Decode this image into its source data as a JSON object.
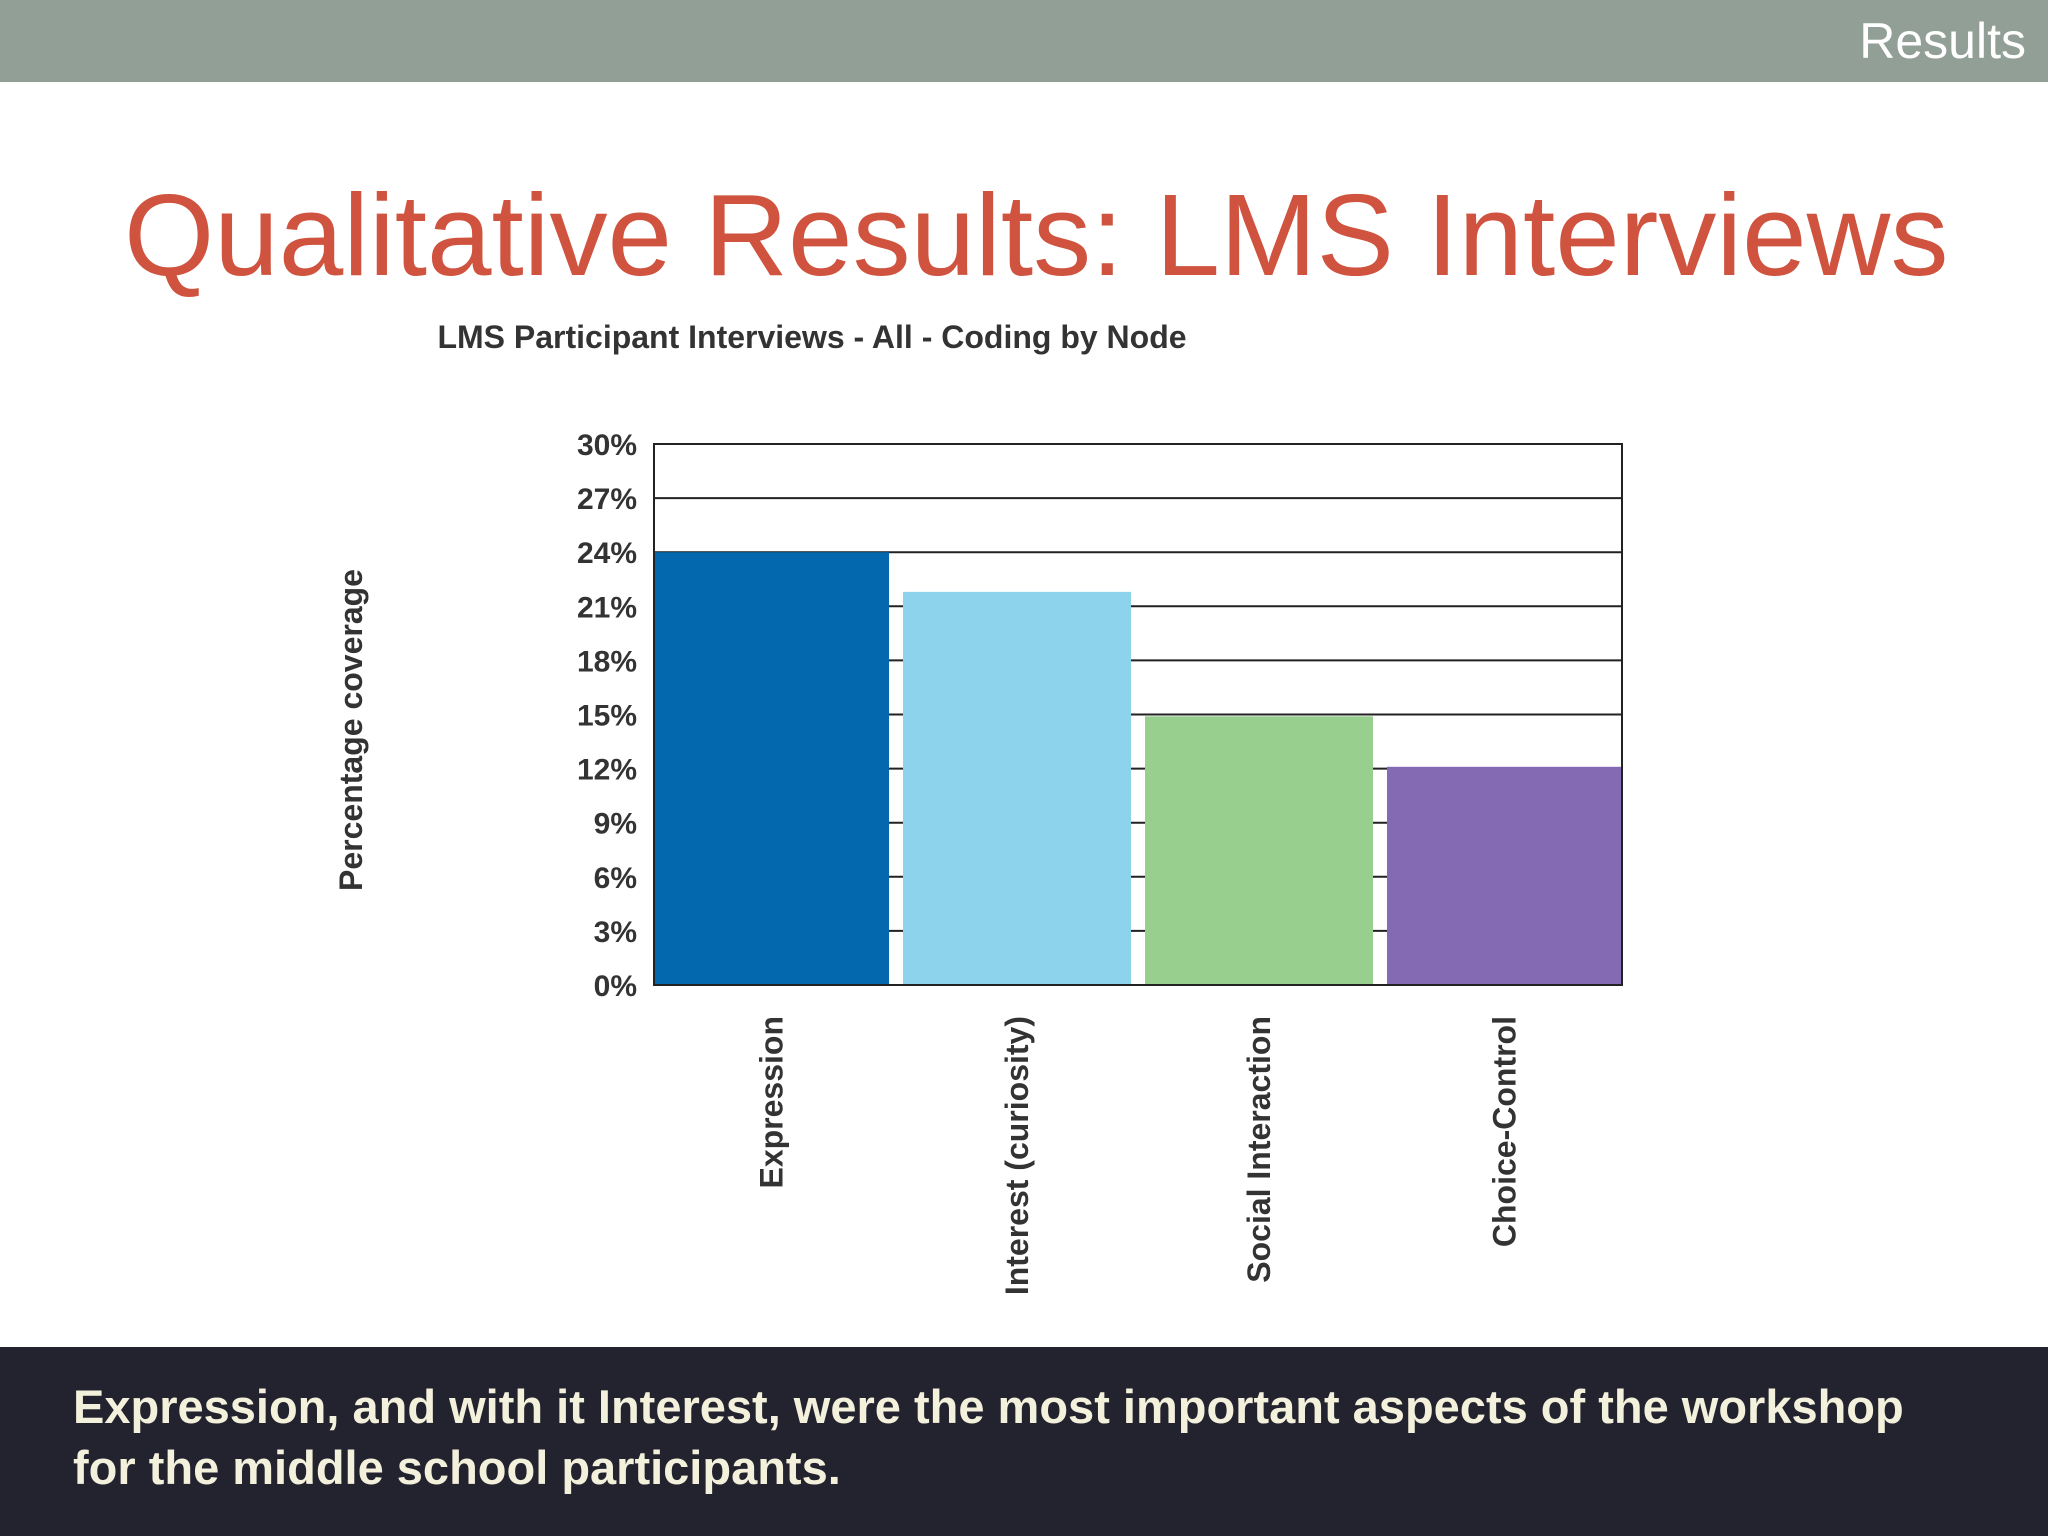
{
  "header": {
    "section_label": "Results"
  },
  "slide": {
    "title": "Qualitative Results: LMS Interviews",
    "caption": "Expression, and with it Interest, were the most important aspects of the workshop for the middle school participants."
  },
  "chart_data": {
    "type": "bar",
    "title": "LMS Participant Interviews - All - Coding by Node",
    "xlabel": "",
    "ylabel": "Percentage coverage",
    "categories": [
      "Expression",
      "Interest (curiosity)",
      "Social Interaction",
      "Choice-Control"
    ],
    "values": [
      24,
      21.8,
      14.9,
      12.1
    ],
    "ylim": [
      0,
      30
    ],
    "yticks": [
      0,
      3,
      6,
      9,
      12,
      15,
      18,
      21,
      24,
      27,
      30
    ],
    "ytick_labels": [
      "0%",
      "3%",
      "6%",
      "9%",
      "12%",
      "15%",
      "18%",
      "21%",
      "24%",
      "27%",
      "30%"
    ],
    "grid": true,
    "legend": "none",
    "colors": [
      "#0368ad",
      "#8ed3ec",
      "#98cf8f",
      "#836ab2"
    ]
  }
}
